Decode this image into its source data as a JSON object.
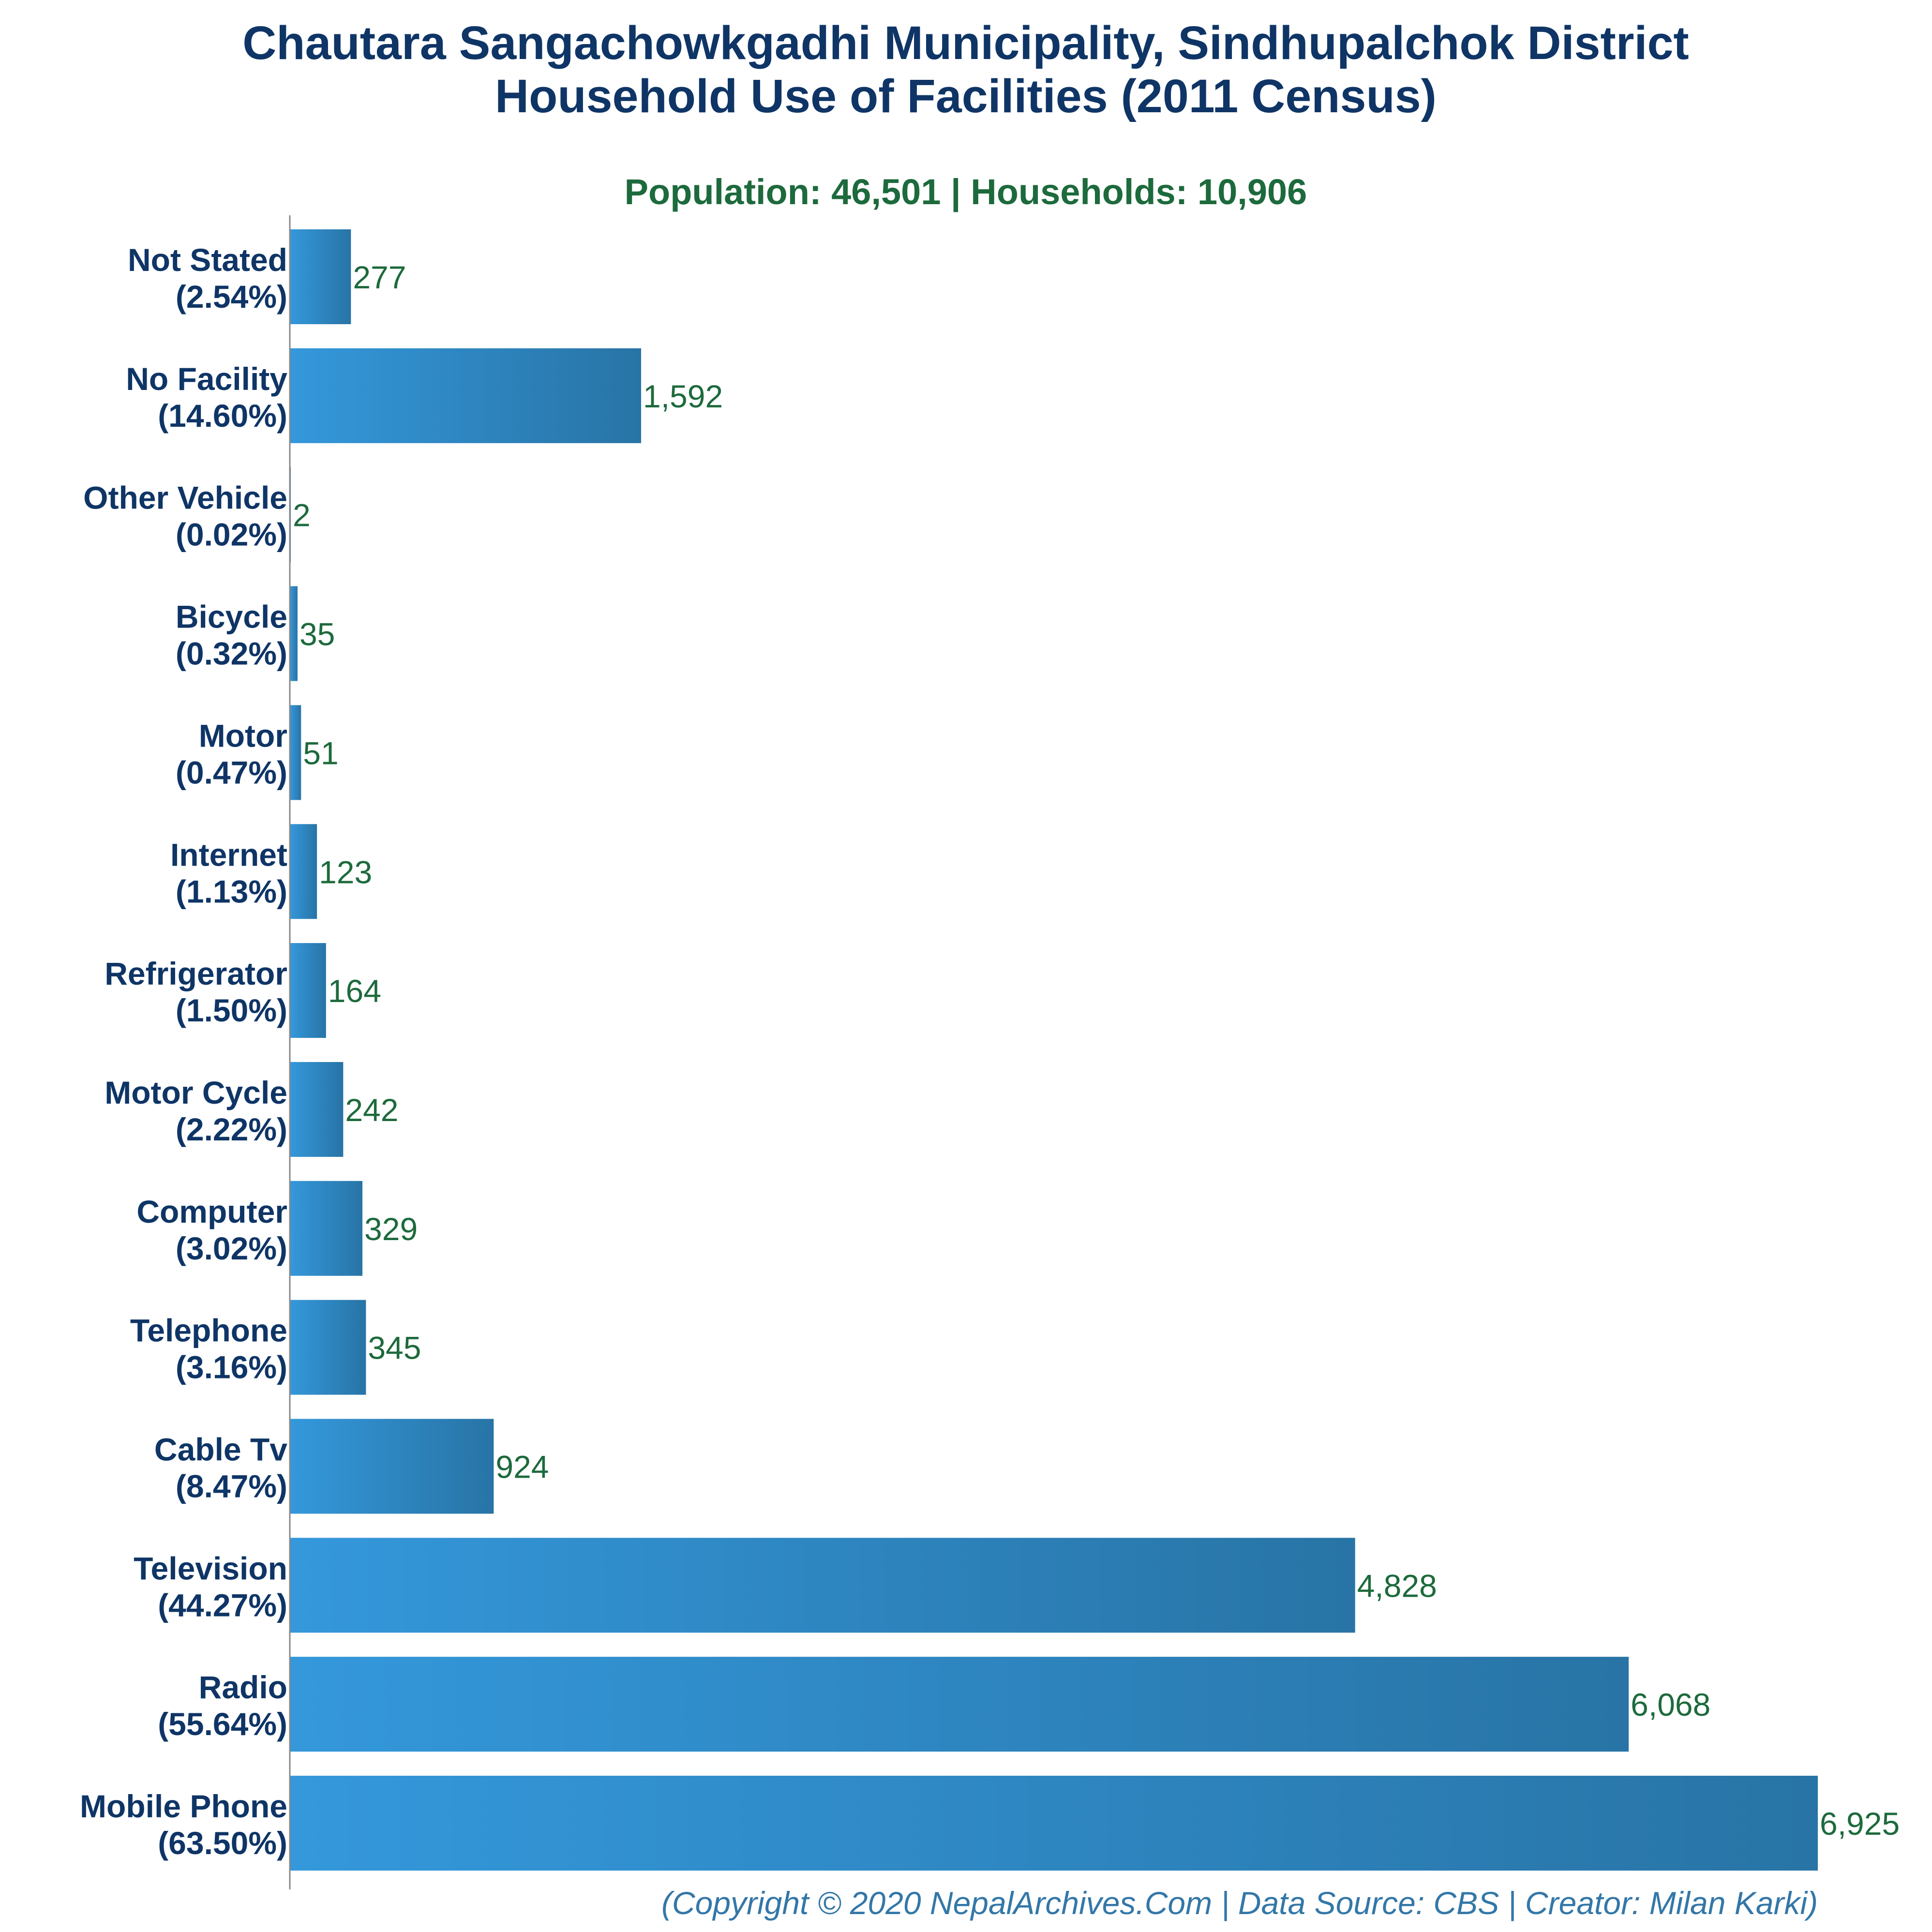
{
  "chart_data": {
    "type": "bar",
    "orientation": "horizontal",
    "title": "Chautara Sangachowkgadhi Municipality, Sindhupalchok District",
    "title_line2": "Household Use of Facilities (2011 Census)",
    "subtitle": "Population: 46,501 | Households: 10,906",
    "footer": "(Copyright © 2020 NepalArchives.Com | Data Source: CBS | Creator: Milan Karki)",
    "categories": [
      "Not Stated",
      "No Facility",
      "Other Vehicle",
      "Bicycle",
      "Motor",
      "Internet",
      "Refrigerator",
      "Motor Cycle",
      "Computer",
      "Telephone",
      "Cable Tv",
      "Television",
      "Radio",
      "Mobile Phone"
    ],
    "percent_labels": [
      "(2.54%)",
      "(14.60%)",
      "(0.02%)",
      "(0.32%)",
      "(0.47%)",
      "(1.13%)",
      "(1.50%)",
      "(2.22%)",
      "(3.02%)",
      "(3.16%)",
      "(8.47%)",
      "(44.27%)",
      "(55.64%)",
      "(63.50%)"
    ],
    "values": [
      277,
      1592,
      2,
      35,
      51,
      123,
      164,
      242,
      329,
      345,
      924,
      4828,
      6068,
      6925
    ],
    "value_labels": [
      "277",
      "1,592",
      "2",
      "35",
      "51",
      "123",
      "164",
      "242",
      "329",
      "345",
      "924",
      "4,828",
      "6,068",
      "6,925"
    ],
    "xlim": [
      0,
      6925
    ],
    "colors": {
      "bar_light": "#3498db",
      "bar_dark": "#2874a6",
      "title": "#0f3566",
      "subtitle": "#1d6a3c",
      "value_label": "#1d6a3c",
      "footer": "#3377a8",
      "axis": "#888888"
    }
  }
}
